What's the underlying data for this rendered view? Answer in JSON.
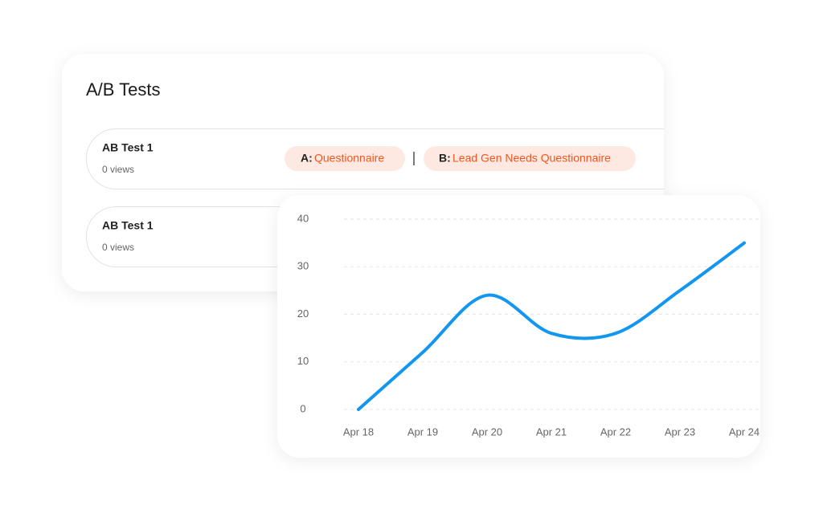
{
  "panel": {
    "title": "A/B Tests",
    "rows": [
      {
        "name": "AB Test 1",
        "views": "0 views",
        "variants": [
          {
            "label": "A:",
            "name": "Questionnaire"
          },
          {
            "label": "B:",
            "name": "Lead Gen Needs Questionnaire"
          }
        ]
      },
      {
        "name": "AB Test 1",
        "views": "0 views"
      }
    ]
  },
  "chart_data": {
    "type": "line",
    "categories": [
      "Apr 18",
      "Apr 19",
      "Apr 20",
      "Apr 21",
      "Apr 22",
      "Apr 23",
      "Apr 24"
    ],
    "values": [
      0,
      12,
      24,
      16,
      16,
      25,
      35
    ],
    "color": "#1296f0",
    "ylim": [
      0,
      40
    ],
    "yticks": [
      0,
      10,
      20,
      30,
      40
    ],
    "grid": true
  }
}
